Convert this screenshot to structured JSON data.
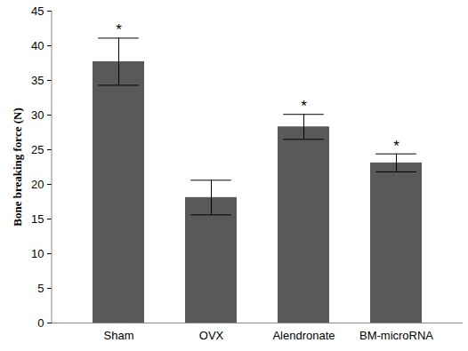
{
  "chart_data": {
    "type": "bar",
    "y_label": "Bone breaking force (N)",
    "categories": [
      "Sham",
      "OVX",
      "Alendronate",
      "BM-microRNA"
    ],
    "values": [
      37.7,
      18.1,
      28.3,
      23.1
    ],
    "errors": [
      3.4,
      2.5,
      1.8,
      1.3
    ],
    "annotations": [
      "*",
      null,
      "*",
      "*"
    ],
    "color": "#595959",
    "ylim": [
      0,
      45
    ],
    "yticks": [
      0,
      5,
      10,
      15,
      20,
      25,
      30,
      35,
      40,
      45
    ],
    "grid": false
  }
}
